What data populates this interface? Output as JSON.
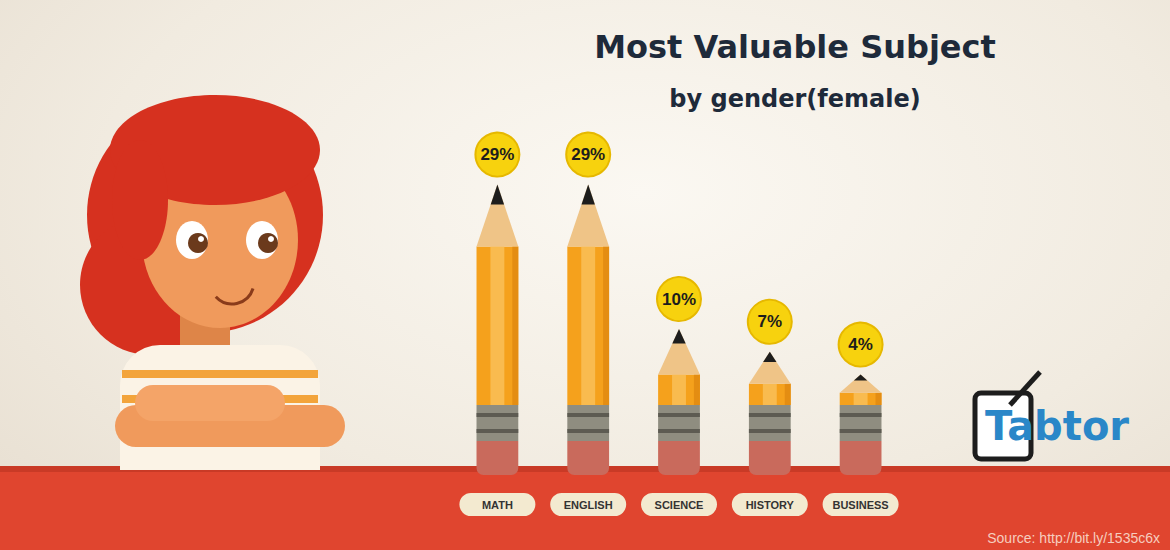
{
  "chart_data": {
    "type": "bar",
    "title": "Most Valuable Subject",
    "subtitle": "by gender(female)",
    "categories": [
      "MATH",
      "ENGLISH",
      "SCIENCE",
      "HISTORY",
      "BUSINESS"
    ],
    "values": [
      29,
      29,
      10,
      7,
      4
    ],
    "value_labels": [
      "29%",
      "29%",
      "10%",
      "7%",
      "4%"
    ],
    "data_labels": true,
    "color": "#f5a11c",
    "ylim": [
      0,
      30
    ],
    "grid": false,
    "tick_labels": "x",
    "annotations": [
      "Source: http://bit.ly/1535c6x",
      "Tabtor"
    ]
  }
}
